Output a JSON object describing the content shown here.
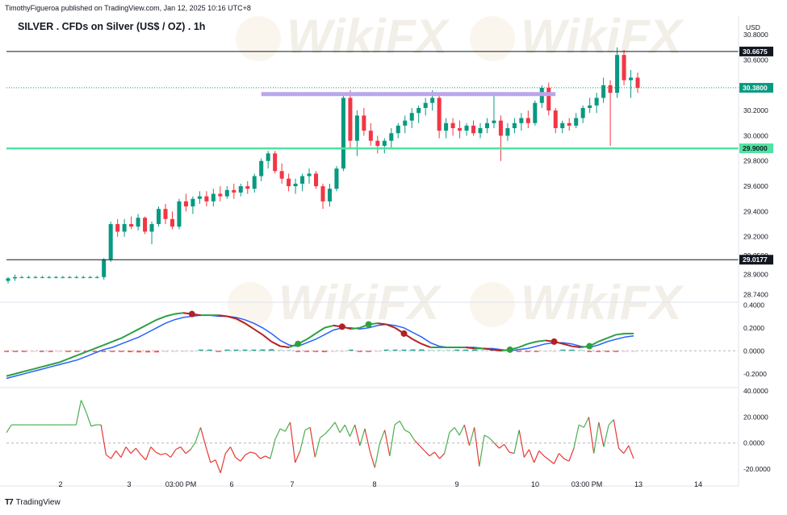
{
  "header": {
    "publish_line": "TimothyFigueroa published on TradingView.com, Jan 12, 2025 10:16 UTC+8",
    "title": "SILVER . CFDs on Silver (US$ / OZ) . 1h",
    "currency": "USD"
  },
  "footer": {
    "logo_text": "TradingView"
  },
  "watermark": {
    "text": "WikiFX"
  },
  "colors": {
    "up": "#089981",
    "down": "#f23645",
    "background": "#ffffff",
    "support_line": "#4fe3a2",
    "resistance_band": "#b9a6ec",
    "macd_line": "#2962ff",
    "signal_line_up": "#2ea043",
    "signal_line_down": "#b22222",
    "osc_up": "#4caf50",
    "osc_down": "#e53935"
  },
  "chart_data": [
    {
      "type": "candlestick",
      "title": "SILVER . CFDs on Silver (US$ / OZ) . 1h",
      "x_ticks": [
        "2",
        "3",
        "03:00 PM",
        "6",
        "7",
        "8",
        "9",
        "10",
        "03:00 PM",
        "13",
        "14"
      ],
      "y_ticks": [
        "30.8000",
        "30.6000",
        "30.4000",
        "30.2000",
        "30.0000",
        "29.8000",
        "29.6000",
        "29.4000",
        "29.2000",
        "29.0500",
        "28.9000",
        "28.7400"
      ],
      "y_range": [
        28.7,
        30.82
      ],
      "horizontal_lines": [
        {
          "label": "30.6675",
          "value": 30.6675,
          "style": "black"
        },
        {
          "label": "29.0177",
          "value": 29.0177,
          "style": "black"
        },
        {
          "label": "29.9000",
          "value": 29.9,
          "style": "green-support"
        }
      ],
      "last_price": {
        "label": "30.3800",
        "value": 30.38
      },
      "resistance_band": {
        "value": 30.33,
        "from_x": "7",
        "to_x": "10"
      },
      "candles": [
        [
          28.85,
          28.88,
          28.83,
          28.87
        ],
        [
          28.87,
          28.9,
          28.85,
          28.88
        ],
        [
          28.88,
          28.89,
          28.87,
          28.88
        ],
        [
          28.88,
          28.89,
          28.87,
          28.88
        ],
        [
          28.88,
          28.89,
          28.87,
          28.88
        ],
        [
          28.88,
          28.89,
          28.87,
          28.88
        ],
        [
          28.88,
          28.89,
          28.87,
          28.88
        ],
        [
          28.88,
          28.89,
          28.87,
          28.88
        ],
        [
          28.88,
          28.89,
          28.87,
          28.88
        ],
        [
          28.88,
          28.89,
          28.87,
          28.88
        ],
        [
          28.88,
          28.89,
          28.87,
          28.88
        ],
        [
          28.88,
          28.89,
          28.87,
          28.88
        ],
        [
          28.88,
          28.89,
          28.87,
          28.88
        ],
        [
          28.88,
          28.89,
          28.87,
          28.88
        ],
        [
          28.88,
          29.03,
          28.86,
          29.02
        ],
        [
          29.02,
          29.32,
          29.0,
          29.3
        ],
        [
          29.3,
          29.34,
          29.2,
          29.24
        ],
        [
          29.24,
          29.34,
          29.2,
          29.3
        ],
        [
          29.3,
          29.36,
          29.26,
          29.28
        ],
        [
          29.28,
          29.38,
          29.25,
          29.35
        ],
        [
          29.35,
          29.36,
          29.22,
          29.24
        ],
        [
          29.24,
          29.32,
          29.14,
          29.3
        ],
        [
          29.3,
          29.44,
          29.28,
          29.42
        ],
        [
          29.42,
          29.46,
          29.3,
          29.34
        ],
        [
          29.34,
          29.4,
          29.26,
          29.28
        ],
        [
          29.28,
          29.5,
          29.26,
          29.48
        ],
        [
          29.48,
          29.54,
          29.4,
          29.44
        ],
        [
          29.44,
          29.52,
          29.38,
          29.5
        ],
        [
          29.5,
          29.56,
          29.46,
          29.52
        ],
        [
          29.52,
          29.56,
          29.44,
          29.48
        ],
        [
          29.48,
          29.58,
          29.44,
          29.54
        ],
        [
          29.54,
          29.6,
          29.48,
          29.52
        ],
        [
          29.52,
          29.6,
          29.5,
          29.57
        ],
        [
          29.57,
          29.62,
          29.5,
          29.55
        ],
        [
          29.55,
          29.62,
          29.52,
          29.6
        ],
        [
          29.6,
          29.64,
          29.54,
          29.58
        ],
        [
          29.58,
          29.7,
          29.55,
          29.68
        ],
        [
          29.68,
          29.82,
          29.64,
          29.8
        ],
        [
          29.8,
          29.88,
          29.74,
          29.86
        ],
        [
          29.86,
          29.88,
          29.7,
          29.72
        ],
        [
          29.72,
          29.78,
          29.62,
          29.66
        ],
        [
          29.66,
          29.7,
          29.56,
          29.6
        ],
        [
          29.6,
          29.66,
          29.54,
          29.62
        ],
        [
          29.62,
          29.7,
          29.56,
          29.68
        ],
        [
          29.68,
          29.74,
          29.62,
          29.7
        ],
        [
          29.7,
          29.72,
          29.58,
          29.6
        ],
        [
          29.6,
          29.62,
          29.42,
          29.48
        ],
        [
          29.48,
          29.62,
          29.44,
          29.58
        ],
        [
          29.58,
          29.76,
          29.56,
          29.74
        ],
        [
          29.74,
          30.32,
          29.72,
          30.3
        ],
        [
          30.3,
          30.36,
          29.9,
          29.96
        ],
        [
          29.96,
          30.2,
          29.84,
          30.16
        ],
        [
          30.16,
          30.22,
          30.0,
          30.04
        ],
        [
          30.04,
          30.1,
          29.92,
          29.96
        ],
        [
          29.96,
          30.0,
          29.86,
          29.92
        ],
        [
          29.92,
          29.98,
          29.86,
          29.96
        ],
        [
          29.96,
          30.06,
          29.9,
          30.02
        ],
        [
          30.02,
          30.1,
          29.98,
          30.08
        ],
        [
          30.08,
          30.16,
          30.02,
          30.12
        ],
        [
          30.12,
          30.22,
          30.06,
          30.18
        ],
        [
          30.18,
          30.24,
          30.1,
          30.22
        ],
        [
          30.22,
          30.3,
          30.16,
          30.26
        ],
        [
          30.26,
          30.36,
          30.2,
          30.3
        ],
        [
          30.3,
          30.34,
          29.98,
          30.04
        ],
        [
          30.04,
          30.14,
          29.98,
          30.1
        ],
        [
          30.1,
          30.14,
          30.0,
          30.06
        ],
        [
          30.06,
          30.12,
          29.98,
          30.04
        ],
        [
          30.04,
          30.1,
          30.0,
          30.08
        ],
        [
          30.08,
          30.12,
          30.0,
          30.02
        ],
        [
          30.02,
          30.1,
          29.98,
          30.06
        ],
        [
          30.06,
          30.14,
          30.02,
          30.1
        ],
        [
          30.1,
          30.34,
          30.06,
          30.12
        ],
        [
          30.12,
          30.16,
          29.8,
          30.0
        ],
        [
          30.0,
          30.1,
          29.96,
          30.06
        ],
        [
          30.06,
          30.14,
          30.02,
          30.1
        ],
        [
          30.1,
          30.18,
          30.04,
          30.14
        ],
        [
          30.14,
          30.2,
          30.06,
          30.1
        ],
        [
          30.1,
          30.28,
          30.08,
          30.26
        ],
        [
          30.26,
          30.4,
          30.22,
          30.38
        ],
        [
          30.38,
          30.42,
          30.16,
          30.2
        ],
        [
          30.2,
          30.22,
          30.02,
          30.06
        ],
        [
          30.06,
          30.12,
          30.02,
          30.1
        ],
        [
          30.1,
          30.14,
          30.04,
          30.08
        ],
        [
          30.08,
          30.18,
          30.06,
          30.14
        ],
        [
          30.14,
          30.24,
          30.1,
          30.22
        ],
        [
          30.22,
          30.3,
          30.18,
          30.24
        ],
        [
          30.24,
          30.34,
          30.18,
          30.3
        ],
        [
          30.3,
          30.46,
          30.26,
          30.4
        ],
        [
          30.4,
          30.44,
          29.92,
          30.34
        ],
        [
          30.34,
          30.7,
          30.3,
          30.64
        ],
        [
          30.64,
          30.68,
          30.4,
          30.44
        ],
        [
          30.44,
          30.52,
          30.3,
          30.46
        ],
        [
          30.46,
          30.5,
          30.34,
          30.38
        ]
      ]
    },
    {
      "type": "macd",
      "y_ticks": [
        "0.4000",
        "0.2000",
        "0.0000",
        "-0.2000"
      ],
      "y_range": [
        -0.3,
        0.43
      ],
      "macd": [
        -0.24,
        -0.22,
        -0.2,
        -0.18,
        -0.16,
        -0.14,
        -0.12,
        -0.1,
        -0.08,
        -0.05,
        -0.02,
        0.01,
        0.03,
        0.06,
        0.09,
        0.12,
        0.16,
        0.2,
        0.24,
        0.27,
        0.29,
        0.3,
        0.31,
        0.31,
        0.3,
        0.3,
        0.29,
        0.27,
        0.24,
        0.2,
        0.15,
        0.09,
        0.05,
        0.04,
        0.07,
        0.1,
        0.14,
        0.18,
        0.2,
        0.2,
        0.19,
        0.2,
        0.22,
        0.23,
        0.22,
        0.2,
        0.16,
        0.12,
        0.07,
        0.04,
        0.03,
        0.03,
        0.03,
        0.03,
        0.02,
        0.02,
        0.01,
        0.0,
        0.01,
        0.02,
        0.04,
        0.06,
        0.07,
        0.07,
        0.06,
        0.04,
        0.03,
        0.05,
        0.08,
        0.1,
        0.12,
        0.13
      ],
      "signal": [
        -0.22,
        -0.2,
        -0.18,
        -0.16,
        -0.14,
        -0.12,
        -0.1,
        -0.07,
        -0.04,
        -0.01,
        0.02,
        0.05,
        0.08,
        0.11,
        0.15,
        0.19,
        0.23,
        0.27,
        0.3,
        0.32,
        0.33,
        0.32,
        0.31,
        0.31,
        0.31,
        0.3,
        0.28,
        0.24,
        0.19,
        0.14,
        0.08,
        0.04,
        0.03,
        0.06,
        0.1,
        0.15,
        0.2,
        0.22,
        0.21,
        0.19,
        0.2,
        0.23,
        0.24,
        0.23,
        0.2,
        0.15,
        0.1,
        0.06,
        0.03,
        0.03,
        0.03,
        0.03,
        0.03,
        0.02,
        0.02,
        0.01,
        0.0,
        0.01,
        0.03,
        0.06,
        0.08,
        0.09,
        0.08,
        0.06,
        0.04,
        0.03,
        0.04,
        0.08,
        0.11,
        0.14,
        0.15,
        0.15
      ],
      "crossover_markers": [
        {
          "x": 21,
          "type": "bearish"
        },
        {
          "x": 33,
          "type": "bullish"
        },
        {
          "x": 38,
          "type": "bearish"
        },
        {
          "x": 41,
          "type": "bullish"
        },
        {
          "x": 45,
          "type": "bearish"
        },
        {
          "x": 57,
          "type": "bullish"
        },
        {
          "x": 62,
          "type": "bearish"
        },
        {
          "x": 66,
          "type": "bullish"
        }
      ]
    },
    {
      "type": "line",
      "y_ticks": [
        "40.0000",
        "20.0000",
        "0.0000",
        "-20.0000"
      ],
      "y_range": [
        -25,
        42
      ],
      "zero_line": 0,
      "series": [
        {
          "values": [
            8,
            14,
            14,
            14,
            14,
            14,
            14,
            14,
            14,
            14,
            14,
            14,
            14,
            14,
            14,
            33,
            24,
            13,
            14,
            14,
            -9,
            -12,
            -6,
            -11,
            -3,
            -8,
            -4,
            -9,
            -13,
            -3,
            -7,
            -9,
            -8,
            -11,
            -5,
            -3,
            -8,
            -5,
            1,
            12,
            -2,
            -15,
            -13,
            -23,
            -8,
            -3,
            -11,
            -14,
            -9,
            -7,
            -8,
            -12,
            -10,
            -12,
            3,
            11,
            9,
            16,
            -15,
            -6,
            10,
            12,
            -11,
            4,
            7,
            11,
            16,
            8,
            14,
            5,
            14,
            -2,
            11,
            -6,
            -19,
            0,
            10,
            -10,
            14,
            17,
            10,
            8,
            2,
            -2,
            -6,
            -10,
            -7,
            -12,
            -8,
            8,
            12,
            6,
            14,
            -2,
            12,
            -18,
            6,
            4,
            0,
            -4,
            -1,
            -7,
            -8,
            10,
            -11,
            -5,
            -15,
            -6,
            -10,
            -13,
            -16,
            -8,
            -12,
            -14,
            -4,
            14,
            12,
            20,
            -8,
            16,
            -3,
            14,
            18,
            -4,
            -8,
            -2,
            -12
          ]
        }
      ]
    }
  ]
}
